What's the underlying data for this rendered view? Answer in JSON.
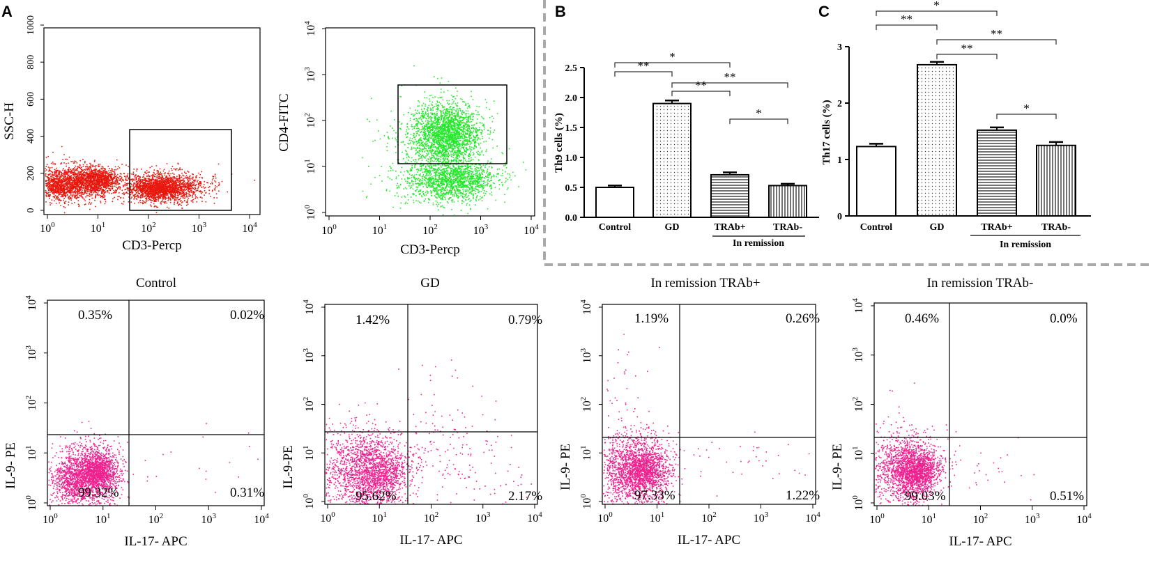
{
  "panel_labels": {
    "a": "A",
    "b": "B",
    "c": "C"
  },
  "colors": {
    "red_dots": "#e8180f",
    "green_dots": "#22e82a",
    "pink_dots": "#f0208f",
    "dashed_border": "#a9a9a9"
  },
  "log_ticks": {
    "base": "10",
    "exponents": [
      "0",
      "1",
      "2",
      "3",
      "4"
    ]
  },
  "scatter_a1": {
    "x_label": "CD3-Percp",
    "y_label": "SSC-H",
    "y_ticks": [
      "0",
      "200",
      "400",
      "600",
      "800",
      "1000"
    ]
  },
  "scatter_a2": {
    "x_label": "CD3-Percp",
    "y_label": "CD4-FITC"
  },
  "quadrant_plots": [
    {
      "title": "Control",
      "x_label": "IL-17- APC",
      "y_label": "IL-9- PE",
      "ul": "0.35%",
      "ur": "0.02%",
      "ll": "99.32%",
      "lr": "0.31%"
    },
    {
      "title": "GD",
      "x_label": "IL-17- APC",
      "y_label": "IL-9-PE",
      "ul": "1.42%",
      "ur": "0.79%",
      "ll": "95.62%",
      "lr": "2.17%"
    },
    {
      "title": "In remission TRAb+",
      "x_label": "IL-17- APC",
      "y_label": "IL-9- PE",
      "ul": "1.19%",
      "ur": "0.26%",
      "ll": "97.33%",
      "lr": "1.22%"
    },
    {
      "title": "In remission TRAb-",
      "x_label": "IL-17- APC",
      "y_label": "IL-9- PE",
      "ul": "0.46%",
      "ur": "0.0%",
      "ll": "99.03%",
      "lr": "0.51%"
    }
  ],
  "chart_data": [
    {
      "type": "bar",
      "title": "",
      "ylabel": "Th9 cells (%)",
      "xlabel": "",
      "categories": [
        "Control",
        "GD",
        "TRAb+",
        "TRAb-"
      ],
      "group_label": "In remission",
      "values": [
        0.5,
        1.9,
        0.71,
        0.53
      ],
      "errors": [
        0.03,
        0.05,
        0.04,
        0.03
      ],
      "ylim": [
        0,
        2.5
      ],
      "yticks": [
        "0.0",
        "0.5",
        "1.0",
        "1.5",
        "2.0",
        "2.5"
      ],
      "significance": [
        {
          "from": 0,
          "to": 1,
          "label": "**"
        },
        {
          "from": 0,
          "to": 2,
          "label": "*"
        },
        {
          "from": 1,
          "to": 2,
          "label": "**"
        },
        {
          "from": 1,
          "to": 3,
          "label": "**"
        },
        {
          "from": 2,
          "to": 3,
          "label": "*"
        }
      ]
    },
    {
      "type": "bar",
      "title": "",
      "ylabel": "Th17 cells (%)",
      "xlabel": "",
      "categories": [
        "Control",
        "GD",
        "TRAb+",
        "TRAb-"
      ],
      "group_label": "In remission",
      "values": [
        1.23,
        2.68,
        1.52,
        1.25
      ],
      "errors": [
        0.05,
        0.05,
        0.05,
        0.06
      ],
      "ylim": [
        0,
        3
      ],
      "yticks": [
        "0",
        "1",
        "2",
        "3"
      ],
      "significance": [
        {
          "from": 0,
          "to": 1,
          "label": "**"
        },
        {
          "from": 0,
          "to": 2,
          "label": "*"
        },
        {
          "from": 1,
          "to": 2,
          "label": "**"
        },
        {
          "from": 1,
          "to": 3,
          "label": "**"
        },
        {
          "from": 2,
          "to": 3,
          "label": "*"
        }
      ]
    }
  ]
}
